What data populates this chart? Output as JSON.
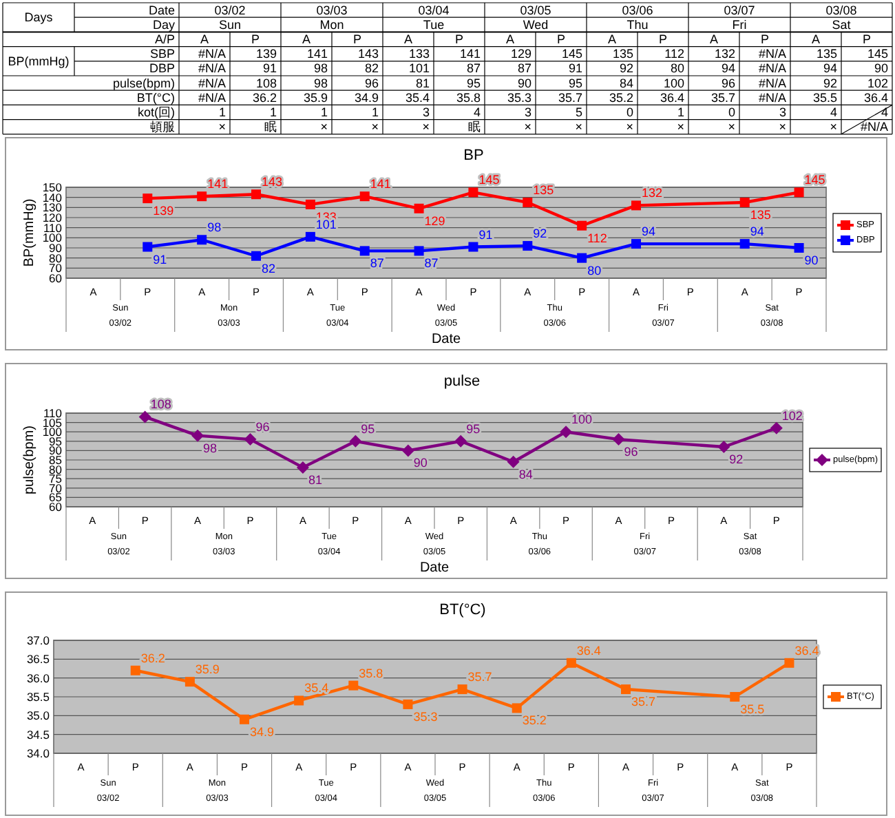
{
  "chart_data": [
    {
      "type": "other",
      "categories": [
        "A",
        "P",
        "A",
        "P",
        "A",
        "P",
        "A",
        "P",
        "A",
        "P",
        "A",
        "P",
        "A",
        "P"
      ],
      "y_categories": [
        "SBP",
        "DBP",
        "pulse(bpm)",
        "BT(°C)",
        "kot(回)",
        "頓服"
      ],
      "cell_labels": [
        [
          "#N/A",
          "139",
          "141",
          "143",
          "133",
          "141",
          "129",
          "145",
          "135",
          "112",
          "132",
          "#N/A",
          "135",
          "145"
        ],
        [
          "#N/A",
          "91",
          "98",
          "82",
          "101",
          "87",
          "87",
          "91",
          "92",
          "80",
          "94",
          "#N/A",
          "94",
          "90"
        ],
        [
          "#N/A",
          "108",
          "98",
          "96",
          "81",
          "95",
          "90",
          "95",
          "84",
          "100",
          "96",
          "#N/A",
          "92",
          "102"
        ],
        [
          "#N/A",
          "36.2",
          "35.9",
          "34.9",
          "35.4",
          "35.8",
          "35.3",
          "35.7",
          "35.2",
          "36.4",
          "35.7",
          "#N/A",
          "35.5",
          "36.4"
        ],
        [
          "1",
          "1",
          "1",
          "1",
          "3",
          "4",
          "3",
          "5",
          "0",
          "1",
          "0",
          "3",
          "4",
          "4"
        ],
        [
          "×",
          "眠",
          "×",
          "×",
          "×",
          "眠",
          "×",
          "×",
          "×",
          "×",
          "×",
          "×",
          "×",
          "#N/A"
        ]
      ],
      "annotations": [
        "Days",
        "Date",
        "Day",
        "A/P",
        "BP(mmHg)",
        "03/02",
        "03/03",
        "03/04",
        "03/05",
        "03/06",
        "03/07",
        "03/08",
        "Sun",
        "Mon",
        "Tue",
        "Wed",
        "Thu",
        "Fri",
        "Sat"
      ]
    },
    {
      "type": "line",
      "title": "BP",
      "xlabel": "Date",
      "ylabel": "BP(mmHg)",
      "categories": [
        "A",
        "P",
        "A",
        "P",
        "A",
        "P",
        "A",
        "P",
        "A",
        "P",
        "A",
        "P",
        "A",
        "P"
      ],
      "annotations": [
        "Sun",
        "Mon",
        "Tue",
        "Wed",
        "Thu",
        "Fri",
        "Sat",
        "03/02",
        "03/03",
        "03/04",
        "03/05",
        "03/06",
        "03/07",
        "03/08"
      ],
      "series": [
        {
          "name": "SBP",
          "color": "#ff0000",
          "values": [
            null,
            139,
            141,
            143,
            133,
            141,
            129,
            145,
            135,
            112,
            132,
            null,
            135,
            145
          ]
        },
        {
          "name": "DBP",
          "color": "#0000ff",
          "values": [
            null,
            91,
            98,
            82,
            101,
            87,
            87,
            91,
            92,
            80,
            94,
            null,
            94,
            90
          ]
        }
      ],
      "ylim": [
        60,
        150
      ],
      "yticks": [
        60,
        70,
        80,
        90,
        100,
        110,
        120,
        130,
        140,
        150
      ],
      "grid": "y",
      "legend": "right",
      "data_labels": true,
      "marker": "square"
    },
    {
      "type": "line",
      "title": "pulse",
      "xlabel": "Date",
      "ylabel": "pulse(bpm)",
      "categories": [
        "A",
        "P",
        "A",
        "P",
        "A",
        "P",
        "A",
        "P",
        "A",
        "P",
        "A",
        "P",
        "A",
        "P"
      ],
      "annotations": [
        "Sun",
        "Mon",
        "Tue",
        "Wed",
        "Thu",
        "Fri",
        "Sat",
        "03/02",
        "03/03",
        "03/04",
        "03/05",
        "03/06",
        "03/07",
        "03/08"
      ],
      "series": [
        {
          "name": "pulse(bpm)",
          "color": "#800080",
          "values": [
            null,
            108,
            98,
            96,
            81,
            95,
            90,
            95,
            84,
            100,
            96,
            null,
            92,
            102
          ]
        }
      ],
      "ylim": [
        60,
        110
      ],
      "yticks": [
        60,
        65,
        70,
        75,
        80,
        85,
        90,
        95,
        100,
        105,
        110
      ],
      "grid": "y",
      "legend": "right",
      "data_labels": true,
      "marker": "diamond"
    },
    {
      "type": "line",
      "title": "BT(°C)",
      "categories": [
        "A",
        "P",
        "A",
        "P",
        "A",
        "P",
        "A",
        "P",
        "A",
        "P",
        "A",
        "P",
        "A",
        "P"
      ],
      "annotations": [
        "Sun",
        "Mon",
        "Tue",
        "Wed",
        "Thu",
        "Fri",
        "Sat",
        "03/02",
        "03/03",
        "03/04",
        "03/05",
        "03/06",
        "03/07",
        "03/08"
      ],
      "series": [
        {
          "name": "BT(°C)",
          "color": "#ff6600",
          "values": [
            null,
            36.2,
            35.9,
            34.9,
            35.4,
            35.8,
            35.3,
            35.7,
            35.2,
            36.4,
            35.7,
            null,
            35.5,
            36.4
          ]
        }
      ],
      "ylim": [
        34,
        37
      ],
      "yticks": [
        {
          "value": 34,
          "label": "34.0"
        },
        {
          "value": 34.5,
          "label": "34.5"
        },
        {
          "value": 35,
          "label": "35.0"
        },
        {
          "value": 35.5,
          "label": "35.5"
        },
        {
          "value": 36,
          "label": "36.0"
        },
        {
          "value": 36.5,
          "label": "36.5"
        },
        {
          "value": 37,
          "label": "37.0"
        }
      ],
      "grid": "y",
      "legend": "right",
      "data_labels": true,
      "marker": "square"
    }
  ]
}
